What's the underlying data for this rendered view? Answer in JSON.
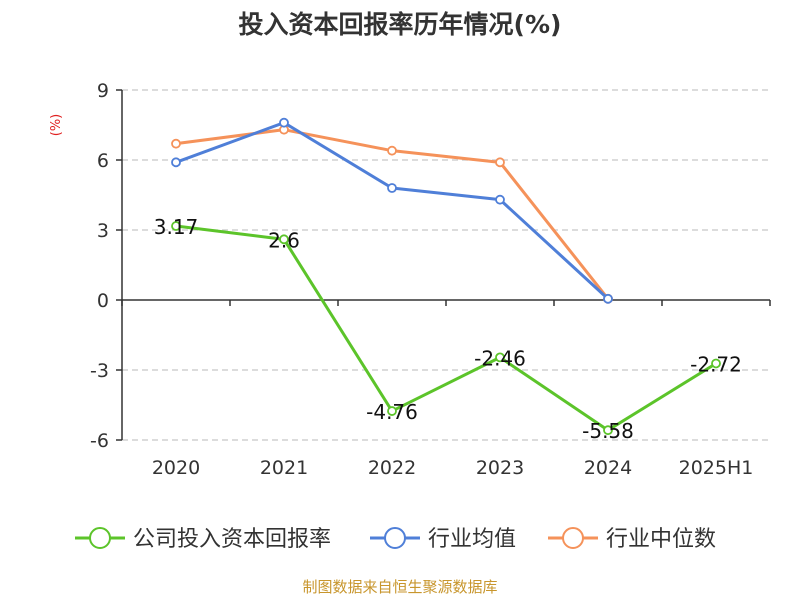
{
  "chart_data": {
    "type": "line",
    "title": "投入资本回报率历年情况(%)",
    "ylabel": "(%)",
    "categories": [
      "2020",
      "2021",
      "2022",
      "2023",
      "2024",
      "2025H1"
    ],
    "yticks": [
      9,
      6,
      3,
      0,
      -3,
      -6
    ],
    "ylim": [
      -6,
      9
    ],
    "grid": true,
    "legend_position": "bottom",
    "series": [
      {
        "name": "公司投入资本回报率",
        "color": "#5cc42a",
        "values": [
          3.17,
          2.6,
          -4.76,
          -2.46,
          -5.58,
          -2.72
        ],
        "labels": [
          "3.17",
          "2.6",
          "-4.76",
          "-2.46",
          "-5.58",
          "-2.72"
        ]
      },
      {
        "name": "行业均值",
        "color": "#4f7fd8",
        "values": [
          5.9,
          7.6,
          4.8,
          4.3,
          0.05,
          null
        ]
      },
      {
        "name": "行业中位数",
        "color": "#f5925a",
        "values": [
          6.7,
          7.3,
          6.4,
          5.9,
          0.05,
          null
        ]
      }
    ]
  },
  "footer": {
    "source": "制图数据来自恒生聚源数据库",
    "source_color": "#c8962d"
  }
}
